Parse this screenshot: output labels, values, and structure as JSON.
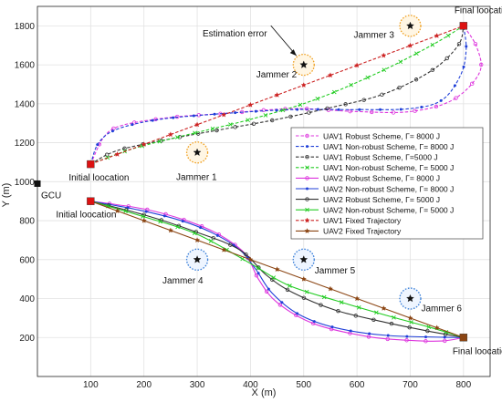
{
  "chart_data": {
    "type": "line",
    "xlabel": "X (m)",
    "ylabel": "Y (m)",
    "xlim": [
      0,
      850
    ],
    "ylim": [
      0,
      1900
    ],
    "xticks": [
      100,
      200,
      300,
      400,
      500,
      600,
      700,
      800
    ],
    "yticks": [
      200,
      400,
      600,
      800,
      1000,
      1200,
      1400,
      1600,
      1800
    ],
    "grid": true,
    "legend_position": "right",
    "legend": [
      {
        "label": "UAV1  Robust Scheme, Γ= 8000 J",
        "color": "#dd33dd",
        "line": "dashed",
        "marker": "circle"
      },
      {
        "label": "UAV1  Non-robust Scheme, Γ= 8000 J",
        "color": "#1f3fd8",
        "line": "dashed",
        "marker": "dot"
      },
      {
        "label": "UAV1  Robust Scheme, Γ=5000 J",
        "color": "#333333",
        "line": "dashed",
        "marker": "circle"
      },
      {
        "label": "UAV1  Non-robust Scheme, Γ= 5000 J",
        "color": "#22cc22",
        "line": "dashed",
        "marker": "x"
      },
      {
        "label": "UAV2  Robust Scheme, Γ= 8000 J",
        "color": "#dd33dd",
        "line": "solid",
        "marker": "circle"
      },
      {
        "label": "UAV2  Non-robust Scheme, Γ= 8000 J",
        "color": "#1f3fd8",
        "line": "solid",
        "marker": "dot"
      },
      {
        "label": "UAV2  Robust Scheme, Γ= 5000 J",
        "color": "#333333",
        "line": "solid",
        "marker": "circle"
      },
      {
        "label": "UAV2  Non-robust Scheme, Γ= 5000 J",
        "color": "#22cc22",
        "line": "solid",
        "marker": "x"
      },
      {
        "label": "UAV1  Fixed Trajectory",
        "color": "#cc2222",
        "line": "dashed",
        "marker": "star"
      },
      {
        "label": "UAV2  Fixed Trajectory",
        "color": "#8b4513",
        "line": "solid",
        "marker": "star"
      }
    ],
    "series": [
      {
        "color": "#dd33dd",
        "dashed": true,
        "marker": "circle",
        "points": [
          [
            100,
            1090
          ],
          [
            125,
            1230
          ],
          [
            160,
            1290
          ],
          [
            250,
            1330
          ],
          [
            350,
            1350
          ],
          [
            480,
            1375
          ],
          [
            600,
            1360
          ],
          [
            700,
            1360
          ],
          [
            780,
            1420
          ],
          [
            830,
            1560
          ],
          [
            825,
            1690
          ],
          [
            800,
            1800
          ]
        ]
      },
      {
        "color": "#1f3fd8",
        "dashed": true,
        "marker": "dot",
        "points": [
          [
            100,
            1090
          ],
          [
            115,
            1200
          ],
          [
            150,
            1270
          ],
          [
            230,
            1320
          ],
          [
            350,
            1350
          ],
          [
            480,
            1370
          ],
          [
            600,
            1370
          ],
          [
            700,
            1375
          ],
          [
            760,
            1420
          ],
          [
            795,
            1550
          ],
          [
            805,
            1680
          ],
          [
            800,
            1800
          ]
        ]
      },
      {
        "color": "#333333",
        "dashed": true,
        "marker": "circle",
        "points": [
          [
            100,
            1090
          ],
          [
            150,
            1160
          ],
          [
            250,
            1220
          ],
          [
            350,
            1270
          ],
          [
            450,
            1320
          ],
          [
            550,
            1380
          ],
          [
            650,
            1450
          ],
          [
            740,
            1570
          ],
          [
            790,
            1700
          ],
          [
            800,
            1800
          ]
        ]
      },
      {
        "color": "#22cc22",
        "dashed": true,
        "marker": "x",
        "points": [
          [
            100,
            1090
          ],
          [
            180,
            1170
          ],
          [
            280,
            1240
          ],
          [
            400,
            1320
          ],
          [
            520,
            1420
          ],
          [
            640,
            1560
          ],
          [
            740,
            1700
          ],
          [
            800,
            1800
          ]
        ]
      },
      {
        "color": "#cc2222",
        "dashed": true,
        "marker": "star",
        "points": [
          [
            100,
            1090
          ],
          [
            800,
            1800
          ]
        ]
      },
      {
        "color": "#dd33dd",
        "dashed": false,
        "marker": "circle",
        "points": [
          [
            100,
            900
          ],
          [
            200,
            860
          ],
          [
            280,
            800
          ],
          [
            340,
            730
          ],
          [
            390,
            630
          ],
          [
            415,
            500
          ],
          [
            450,
            380
          ],
          [
            520,
            270
          ],
          [
            620,
            205
          ],
          [
            700,
            185
          ],
          [
            760,
            182
          ],
          [
            800,
            200
          ]
        ]
      },
      {
        "color": "#1f3fd8",
        "dashed": false,
        "marker": "dot",
        "points": [
          [
            100,
            900
          ],
          [
            190,
            855
          ],
          [
            270,
            800
          ],
          [
            330,
            735
          ],
          [
            380,
            650
          ],
          [
            410,
            550
          ],
          [
            440,
            430
          ],
          [
            490,
            320
          ],
          [
            560,
            250
          ],
          [
            660,
            210
          ],
          [
            800,
            200
          ]
        ]
      },
      {
        "color": "#333333",
        "dashed": false,
        "marker": "circle",
        "points": [
          [
            100,
            900
          ],
          [
            200,
            830
          ],
          [
            300,
            740
          ],
          [
            380,
            650
          ],
          [
            430,
            520
          ],
          [
            480,
            430
          ],
          [
            560,
            340
          ],
          [
            650,
            280
          ],
          [
            730,
            235
          ],
          [
            800,
            200
          ]
        ]
      },
      {
        "color": "#22cc22",
        "dashed": false,
        "marker": "x",
        "points": [
          [
            100,
            900
          ],
          [
            200,
            820
          ],
          [
            300,
            730
          ],
          [
            400,
            580
          ],
          [
            470,
            470
          ],
          [
            560,
            390
          ],
          [
            660,
            310
          ],
          [
            740,
            250
          ],
          [
            800,
            200
          ]
        ]
      },
      {
        "color": "#8b4513",
        "dashed": false,
        "marker": "star",
        "points": [
          [
            100,
            900
          ],
          [
            800,
            200
          ]
        ]
      }
    ],
    "jammers": [
      {
        "label": "Jammer 1",
        "x": 300,
        "y": 1150,
        "ring": "orange"
      },
      {
        "label": "Jammer 2",
        "x": 500,
        "y": 1600,
        "ring": "orange"
      },
      {
        "label": "Jammer 3",
        "x": 700,
        "y": 1800,
        "ring": "orange"
      },
      {
        "label": "Jammer 4",
        "x": 300,
        "y": 600,
        "ring": "blue"
      },
      {
        "label": "Jammer 5",
        "x": 500,
        "y": 600,
        "ring": "blue"
      },
      {
        "label": "Jammer 6",
        "x": 700,
        "y": 400,
        "ring": "blue"
      }
    ],
    "gcu": {
      "label": "GCU",
      "x": 0,
      "y": 990
    },
    "endpoints": [
      {
        "label": "Initial loocation",
        "x": 100,
        "y": 1090,
        "color": "#dd1111"
      },
      {
        "label": "Final loocation",
        "x": 800,
        "y": 1800,
        "color": "#dd1111"
      },
      {
        "label": "Initial loocation",
        "x": 100,
        "y": 900,
        "color": "#dd1111"
      },
      {
        "label": "Final loocation",
        "x": 800,
        "y": 200,
        "color": "#8b4513"
      }
    ],
    "annotation": {
      "text": "Estimation error",
      "target_x": 500,
      "target_y": 1600
    }
  }
}
